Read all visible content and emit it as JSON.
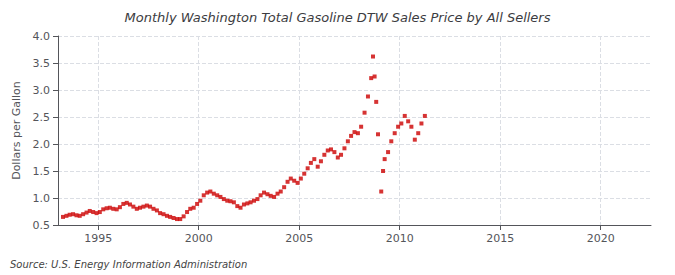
{
  "chart_data": {
    "type": "scatter",
    "title": "Monthly Washington Total Gasoline DTW Sales Price by All Sellers",
    "ylabel": "Dollars per Gallon",
    "source": "Source: U.S. Energy Information Administration",
    "color": "#cc0000",
    "marker": "square",
    "grid": true,
    "xlim": [
      1993.0,
      2022.5
    ],
    "ylim": [
      0.5,
      4.0
    ],
    "xticks": [
      1995,
      2000,
      2005,
      2010,
      2015,
      2020
    ],
    "yticks": [
      0.5,
      {
        "value": 1.0,
        "label": "1.0"
      },
      1.5,
      {
        "value": 2.0,
        "label": "2.0"
      },
      2.5,
      {
        "value": 3.0,
        "label": "3.0"
      },
      3.5,
      {
        "value": 4.0,
        "label": "4.0"
      }
    ],
    "x": [
      1993.25,
      1993.42,
      1993.58,
      1993.75,
      1993.92,
      1994.08,
      1994.25,
      1994.42,
      1994.58,
      1994.75,
      1994.92,
      1995.08,
      1995.25,
      1995.42,
      1995.58,
      1995.75,
      1995.92,
      1996.08,
      1996.25,
      1996.42,
      1996.58,
      1996.75,
      1996.92,
      1997.08,
      1997.25,
      1997.42,
      1997.58,
      1997.75,
      1997.92,
      1998.08,
      1998.25,
      1998.42,
      1998.58,
      1998.75,
      1998.92,
      1999.08,
      1999.25,
      1999.42,
      1999.58,
      1999.75,
      1999.92,
      2000.08,
      2000.25,
      2000.42,
      2000.58,
      2000.75,
      2000.92,
      2001.08,
      2001.25,
      2001.42,
      2001.58,
      2001.75,
      2001.92,
      2002.08,
      2002.25,
      2002.42,
      2002.58,
      2002.75,
      2002.92,
      2003.08,
      2003.25,
      2003.42,
      2003.58,
      2003.75,
      2003.92,
      2004.08,
      2004.25,
      2004.42,
      2004.58,
      2004.75,
      2004.92,
      2005.08,
      2005.25,
      2005.42,
      2005.58,
      2005.75,
      2005.92,
      2006.08,
      2006.25,
      2006.42,
      2006.58,
      2006.75,
      2006.92,
      2007.08,
      2007.25,
      2007.42,
      2007.58,
      2007.75,
      2007.92,
      2008.08,
      2008.25,
      2008.42,
      2008.58,
      2008.67,
      2008.75,
      2008.83,
      2008.92,
      2009.08,
      2009.17,
      2009.25,
      2009.42,
      2009.58,
      2009.75,
      2009.92,
      2010.08,
      2010.25,
      2010.42,
      2010.58,
      2010.75,
      2010.92,
      2011.08,
      2011.25
    ],
    "values": [
      0.65,
      0.67,
      0.69,
      0.7,
      0.68,
      0.67,
      0.7,
      0.73,
      0.76,
      0.74,
      0.72,
      0.74,
      0.79,
      0.81,
      0.82,
      0.8,
      0.79,
      0.83,
      0.89,
      0.91,
      0.88,
      0.84,
      0.8,
      0.82,
      0.84,
      0.86,
      0.84,
      0.8,
      0.77,
      0.72,
      0.7,
      0.67,
      0.65,
      0.63,
      0.61,
      0.61,
      0.66,
      0.74,
      0.8,
      0.82,
      0.89,
      0.95,
      1.05,
      1.1,
      1.12,
      1.08,
      1.05,
      1.02,
      0.98,
      0.95,
      0.94,
      0.92,
      0.85,
      0.82,
      0.88,
      0.9,
      0.92,
      0.95,
      0.98,
      1.05,
      1.1,
      1.07,
      1.04,
      1.02,
      1.08,
      1.12,
      1.2,
      1.3,
      1.36,
      1.32,
      1.28,
      1.36,
      1.45,
      1.55,
      1.65,
      1.72,
      1.58,
      1.68,
      1.8,
      1.88,
      1.9,
      1.85,
      1.75,
      1.8,
      1.92,
      2.05,
      2.15,
      2.22,
      2.2,
      2.32,
      2.58,
      2.88,
      3.22,
      3.62,
      3.25,
      2.78,
      2.18,
      1.12,
      1.5,
      1.72,
      1.85,
      2.05,
      2.2,
      2.32,
      2.38,
      2.52,
      2.42,
      2.32,
      2.08,
      2.2,
      2.38,
      2.52
    ]
  }
}
